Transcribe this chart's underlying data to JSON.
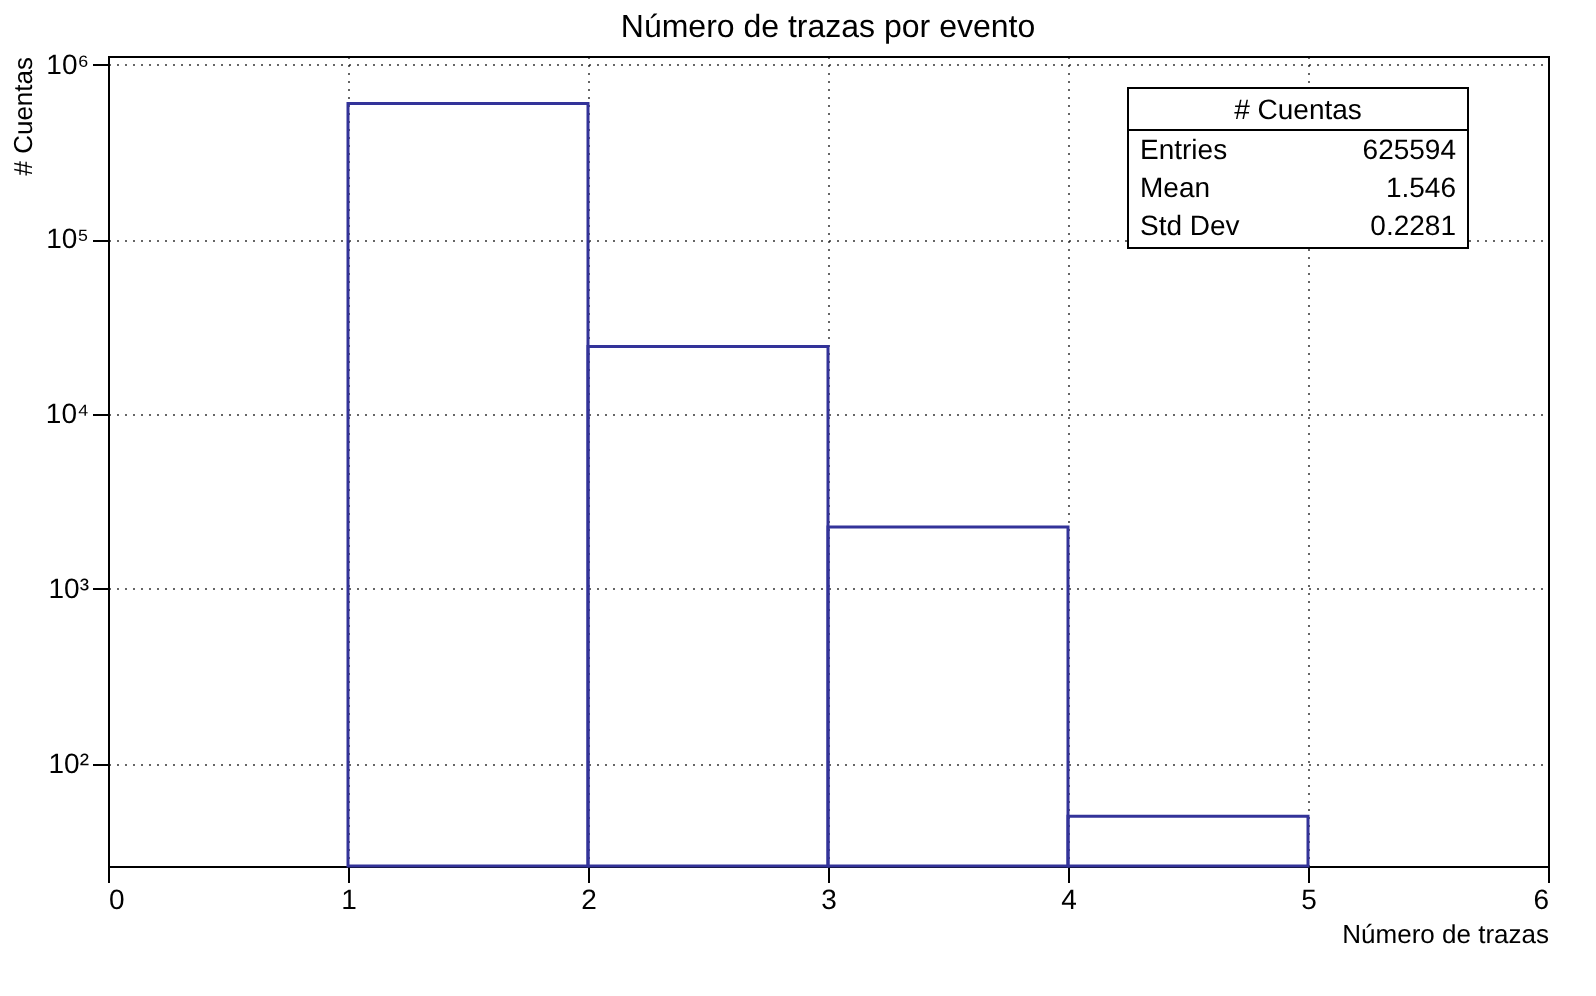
{
  "chart_data": {
    "type": "histogram",
    "title": "Número de trazas por evento",
    "xlabel": "Número de trazas",
    "ylabel": "# Cuentas",
    "bins": [
      1,
      2,
      3,
      4,
      5
    ],
    "values": [
      599000,
      24400,
      2260,
      50
    ],
    "color": "#333399",
    "xlim": [
      0,
      6
    ],
    "xticks": [
      0,
      1,
      2,
      3,
      4,
      5,
      6
    ],
    "ylim": [
      26,
      1120000
    ],
    "yticks": [
      {
        "value": 100,
        "label": "10²"
      },
      {
        "value": 1000,
        "label": "10³"
      },
      {
        "value": 10000,
        "label": "10⁴"
      },
      {
        "value": 100000,
        "label": "10⁵"
      },
      {
        "value": 1000000,
        "label": "10⁶"
      }
    ],
    "log": true,
    "grid": true,
    "annotations": [
      "# Cuentas",
      "Entries",
      "625594",
      "Mean",
      "1.546",
      "Std Dev",
      "0.2281"
    ]
  }
}
